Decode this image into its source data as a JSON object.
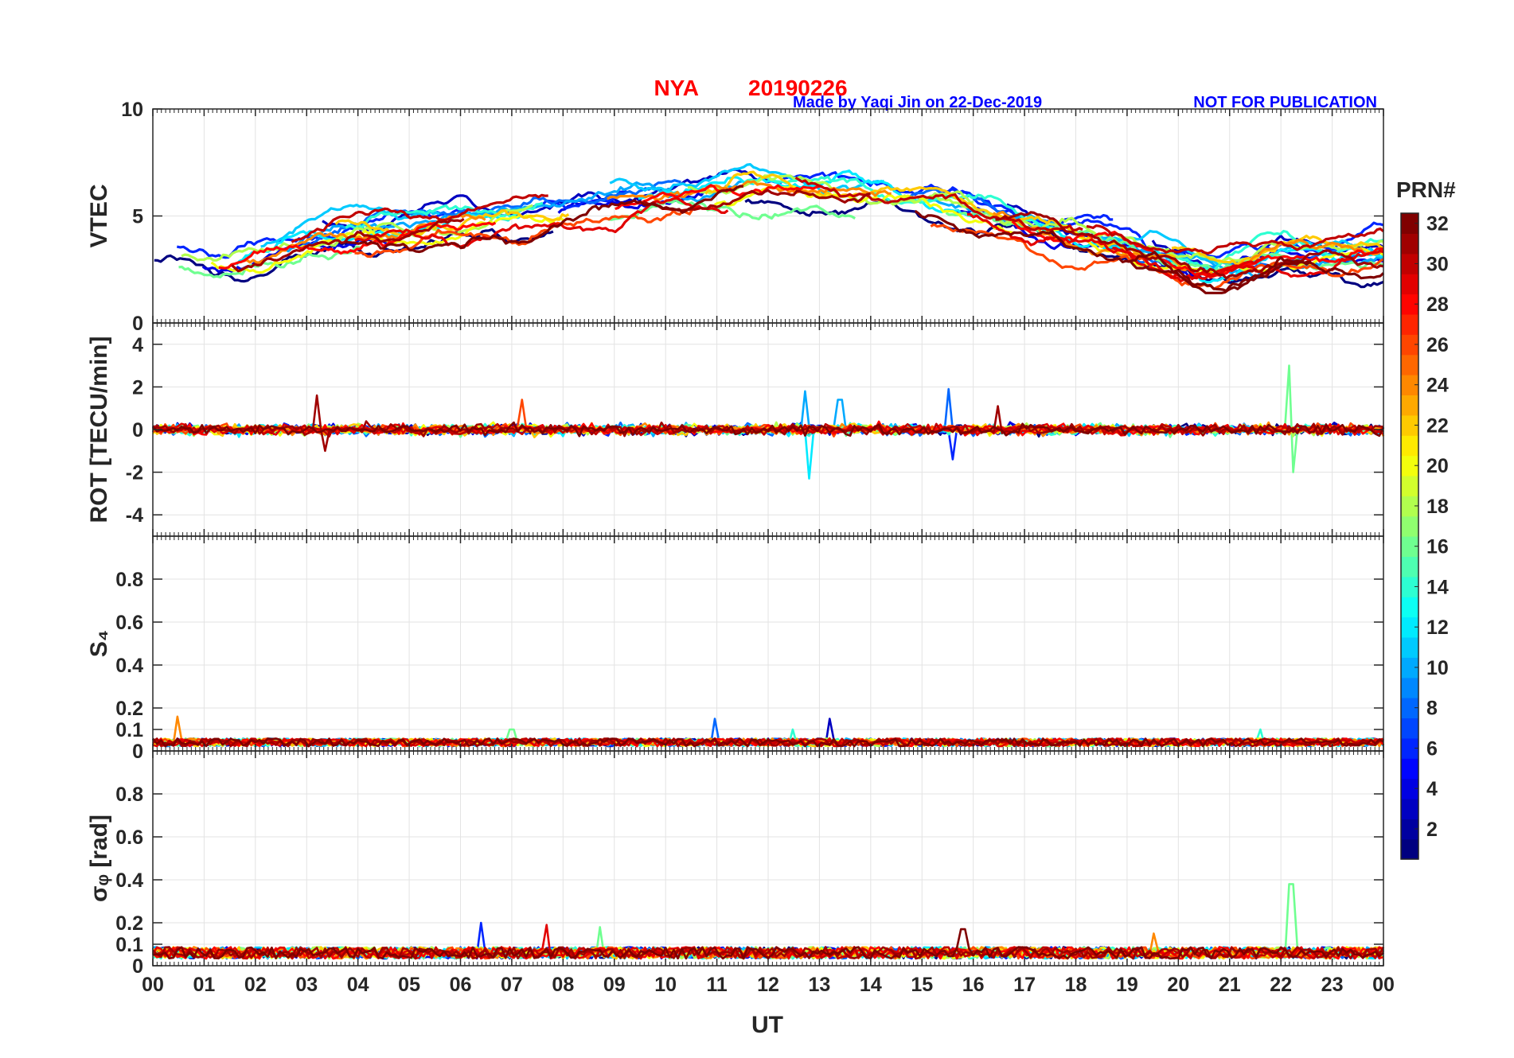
{
  "chart_data": {
    "type": "line",
    "title": {
      "station": "NYA",
      "date": "20190226",
      "credit": "Made by Yaqi Jin on 22-Dec-2019",
      "notice": "NOT FOR PUBLICATION",
      "title_color": "#ff0000",
      "credit_color": "#0000ff"
    },
    "xlabel": "UT",
    "x_ticks": [
      "00",
      "01",
      "02",
      "03",
      "04",
      "05",
      "06",
      "07",
      "08",
      "09",
      "10",
      "11",
      "12",
      "13",
      "14",
      "15",
      "16",
      "17",
      "18",
      "19",
      "20",
      "21",
      "22",
      "23",
      "00"
    ],
    "xlim_hours": [
      0,
      24
    ],
    "panels": [
      {
        "ylabel": "VTEC",
        "ylim": [
          0,
          10
        ],
        "y_ticks": [
          "0",
          "5",
          "10"
        ],
        "y_tick_values": [
          0,
          5,
          10
        ],
        "trend_hours": [
          0,
          1,
          1.6,
          2,
          3,
          4,
          5,
          6,
          7,
          8,
          9,
          10,
          11,
          12,
          13,
          14,
          15,
          16,
          17,
          18,
          19,
          20,
          20.7,
          21.5,
          22,
          23,
          24
        ],
        "trend_values": [
          3.6,
          3.0,
          2.7,
          3.0,
          3.9,
          4.3,
          4.4,
          4.7,
          5.0,
          5.3,
          5.6,
          5.9,
          6.1,
          6.4,
          6.1,
          5.8,
          5.6,
          5.3,
          4.6,
          4.0,
          3.5,
          2.8,
          2.4,
          2.9,
          3.3,
          3.1,
          3.3
        ]
      },
      {
        "ylabel": "ROT [TECU/min]",
        "ylim": [
          -5,
          5
        ],
        "y_ticks": [
          "-4",
          "-2",
          "0",
          "2",
          "4"
        ],
        "y_tick_values": [
          -4,
          -2,
          0,
          2,
          4
        ],
        "noise_sigma": 0.12,
        "events": [
          {
            "hour": 3.2,
            "prn": 31,
            "amplitude": 1.6
          },
          {
            "hour": 3.35,
            "prn": 31,
            "amplitude": -1.0
          },
          {
            "hour": 7.2,
            "prn": 26,
            "amplitude": 1.4
          },
          {
            "hour": 12.7,
            "prn": 10,
            "amplitude": 1.8
          },
          {
            "hour": 12.8,
            "prn": 12,
            "amplitude": -2.3
          },
          {
            "hour": 13.4,
            "prn": 10,
            "amplitude": 1.4
          },
          {
            "hour": 15.5,
            "prn": 8,
            "amplitude": 1.9
          },
          {
            "hour": 15.6,
            "prn": 6,
            "amplitude": -1.4
          },
          {
            "hour": 16.5,
            "prn": 31,
            "amplitude": 1.1
          },
          {
            "hour": 22.2,
            "prn": 16,
            "amplitude": 3.0
          },
          {
            "hour": 22.25,
            "prn": 16,
            "amplitude": -2.0
          }
        ]
      },
      {
        "ylabel": "S₄",
        "ylim": [
          0,
          1
        ],
        "y_ticks": [
          "0",
          "0.1",
          "0.2",
          "0.4",
          "0.6",
          "0.8"
        ],
        "y_tick_values": [
          0,
          0.1,
          0.2,
          0.4,
          0.6,
          0.8
        ],
        "baseline": 0.04,
        "events": [
          {
            "hour": 0.45,
            "prn": 24,
            "amplitude": 0.16
          },
          {
            "hour": 10.95,
            "prn": 8,
            "amplitude": 0.15
          },
          {
            "hour": 13.2,
            "prn": 3,
            "amplitude": 0.15
          },
          {
            "hour": 12.5,
            "prn": 14,
            "amplitude": 0.1
          },
          {
            "hour": 21.6,
            "prn": 14,
            "amplitude": 0.1
          },
          {
            "hour": 7.0,
            "prn": 16,
            "amplitude": 0.1
          }
        ]
      },
      {
        "ylabel": "σᵩ [rad]",
        "ylim": [
          0,
          1
        ],
        "y_ticks": [
          "0",
          "0.1",
          "0.2",
          "0.4",
          "0.6",
          "0.8"
        ],
        "y_tick_values": [
          0,
          0.1,
          0.2,
          0.4,
          0.6,
          0.8
        ],
        "baseline": 0.06,
        "events": [
          {
            "hour": 6.4,
            "prn": 6,
            "amplitude": 0.2
          },
          {
            "hour": 7.7,
            "prn": 29,
            "amplitude": 0.19
          },
          {
            "hour": 8.7,
            "prn": 16,
            "amplitude": 0.18
          },
          {
            "hour": 15.8,
            "prn": 32,
            "amplitude": 0.17
          },
          {
            "hour": 19.5,
            "prn": 24,
            "amplitude": 0.15
          },
          {
            "hour": 22.2,
            "prn": 16,
            "amplitude": 0.38
          }
        ]
      }
    ],
    "colorbar": {
      "label": "PRN#",
      "range": [
        1,
        32
      ],
      "ticks": [
        "2",
        "4",
        "6",
        "8",
        "10",
        "12",
        "14",
        "16",
        "18",
        "20",
        "22",
        "24",
        "26",
        "28",
        "30",
        "32"
      ],
      "tick_values": [
        2,
        4,
        6,
        8,
        10,
        12,
        14,
        16,
        18,
        20,
        22,
        24,
        26,
        28,
        30,
        32
      ],
      "colormap": "jet"
    },
    "series_prn": [
      1,
      3,
      4,
      6,
      8,
      10,
      11,
      12,
      14,
      16,
      18,
      20,
      22,
      24,
      26,
      28,
      29,
      30,
      31,
      32
    ]
  }
}
